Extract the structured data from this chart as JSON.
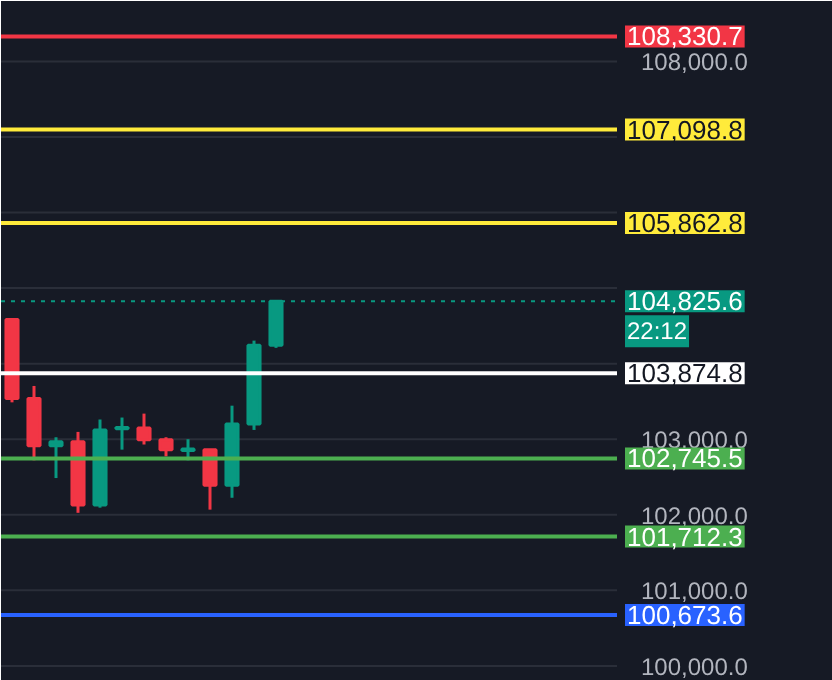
{
  "chart_data": {
    "type": "candlestick",
    "categories": [
      null,
      null,
      null,
      null,
      null,
      null,
      null,
      null,
      null,
      null,
      null,
      null,
      null,
      null,
      null,
      null,
      null,
      null,
      null,
      null,
      null,
      null,
      null,
      null,
      null,
      null,
      null,
      null
    ],
    "ohlc": [
      [
        104585,
        104585,
        103488,
        103540
      ],
      [
        103540,
        103705,
        102721,
        102914
      ],
      [
        102914,
        103026,
        102486,
        102966
      ],
      [
        102966,
        103097,
        102026,
        102131
      ],
      [
        102131,
        103261,
        102094,
        103123
      ],
      [
        103140,
        103287,
        102862,
        103154
      ],
      [
        103149,
        103339,
        102930,
        102992
      ],
      [
        102992,
        103026,
        102773,
        102862
      ],
      [
        102851,
        103000,
        102721,
        102869
      ],
      [
        102862,
        102862,
        102068,
        102392
      ],
      [
        102392,
        103444,
        102225,
        103201
      ],
      [
        103201,
        104305,
        103123,
        104245
      ],
      [
        104245,
        104825.6,
        104209,
        104825.6
      ],
      null,
      null,
      null,
      null,
      null,
      null,
      null,
      null,
      null,
      null,
      null,
      null,
      null,
      null,
      null
    ],
    "colors": [
      "#f23645",
      "#f23645",
      "#089981",
      "#f23645",
      "#089981",
      "#089981",
      "#f23645",
      "#f23645",
      "#089981",
      "#f23645",
      "#089981",
      "#089981",
      "#089981",
      null,
      null,
      null,
      null,
      null,
      null,
      null,
      null,
      null,
      null,
      null,
      null,
      null,
      null,
      null
    ],
    "ylim": [
      99800,
      108800
    ],
    "yticks": [
      {
        "value": 100000,
        "label": "100,000.0"
      },
      {
        "value": 101000,
        "label": "101,000.0"
      },
      {
        "value": 102000,
        "label": "102,000.0"
      },
      {
        "value": 103000,
        "label": "103,000.0"
      },
      {
        "value": 104000,
        "label": null
      },
      {
        "value": 105000,
        "label": null
      },
      {
        "value": 106000,
        "label": null
      },
      {
        "value": 107000,
        "label": null
      },
      {
        "value": 108000,
        "label": "108,000.0"
      }
    ],
    "tick_labels": "y",
    "grid": "y",
    "ref_lines": [
      {
        "axis": "y",
        "value": 108330.7,
        "label": "108,330.7",
        "color": "#f23645",
        "line_style": "solid"
      },
      {
        "axis": "y",
        "value": 107098.8,
        "label": "107,098.8",
        "color": "#ffeb3b",
        "line_style": "solid"
      },
      {
        "axis": "y",
        "value": 105862.8,
        "label": "105,862.8",
        "color": "#ffeb3b",
        "line_style": "solid"
      },
      {
        "axis": "y",
        "value": 104825.6,
        "label": "104,825.6",
        "color": "#089981",
        "line_style": "dotted"
      },
      {
        "axis": "y",
        "value": 103874.8,
        "label": "103,874.8",
        "color": "#ffffff",
        "line_style": "solid"
      },
      {
        "axis": "y",
        "value": 102745.5,
        "label": "102,745.5",
        "color": "#4caf50",
        "line_style": "solid"
      },
      {
        "axis": "y",
        "value": 101712.3,
        "label": "101,712.3",
        "color": "#4caf50",
        "line_style": "solid"
      },
      {
        "axis": "y",
        "value": 100673.6,
        "label": "100,673.6",
        "color": "#2962ff",
        "line_style": "solid"
      }
    ],
    "annotations": [
      "22:12"
    ]
  }
}
